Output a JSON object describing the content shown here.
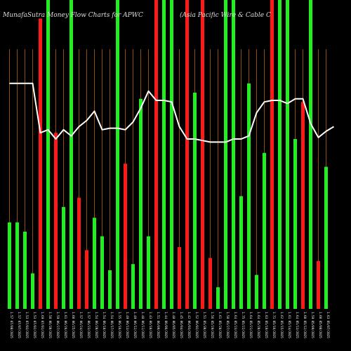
{
  "header": {
    "left_title": "MunafaSutra  Money Flow  Charts for APWC",
    "right_title": "(Asia  Pacific Wire  & Cable   C"
  },
  "colors": {
    "background": "#000000",
    "gridline": "#b8620a",
    "bar_up": "#22ee22",
    "bar_down": "#ff1a1a",
    "price_line": "#ffffff",
    "text": "#dddddd"
  },
  "chart_data": {
    "type": "bar",
    "title": "MunafaSutra  Money Flow  Charts for APWC",
    "subtitle": "(Asia  Pacific Wire  & Cable   C",
    "grid": "vertical",
    "ylim": [
      0,
      100
    ],
    "bars": [
      {
        "label": "1.57 07/08/2025",
        "value": 28,
        "dir": "up"
      },
      {
        "label": "1.57 07/07/2025",
        "value": 28,
        "dir": "up"
      },
      {
        "label": "1.53 07/03/2025",
        "value": 25,
        "dir": "up"
      },
      {
        "label": "1.53 07/02/2025",
        "value": 11.5,
        "dir": "up"
      },
      {
        "label": "1.69 07/01/2025",
        "value": 94,
        "dir": "down"
      },
      {
        "label": "1.58 06/30/2025",
        "value": 100,
        "dir": "up"
      },
      {
        "label": "1.59 06/27/2025",
        "value": 57,
        "dir": "down"
      },
      {
        "label": "1.61 06/26/2025",
        "value": 33,
        "dir": "up"
      },
      {
        "label": "1.60 06/25/2025",
        "value": 100,
        "dir": "up"
      },
      {
        "label": "1.57 06/24/2025",
        "value": 36,
        "dir": "down"
      },
      {
        "label": "1.57 06/23/2025",
        "value": 19,
        "dir": "down"
      },
      {
        "label": "1.54 06/20/2025",
        "value": 29.5,
        "dir": "up"
      },
      {
        "label": "1.54 06/18/2025",
        "value": 23.5,
        "dir": "up"
      },
      {
        "label": "1.54 06/17/2025",
        "value": 12.5,
        "dir": "up"
      },
      {
        "label": "1.55 06/16/2025",
        "value": 100,
        "dir": "up"
      },
      {
        "label": "1.49 06/13/2025",
        "value": 47,
        "dir": "down"
      },
      {
        "label": "1.49 06/12/2025",
        "value": 14.5,
        "dir": "up"
      },
      {
        "label": "1.48 06/11/2025",
        "value": 68,
        "dir": "up"
      },
      {
        "label": "1.43 06/10/2025",
        "value": 23.5,
        "dir": "up"
      },
      {
        "label": "1.51 06/09/2025",
        "value": 100,
        "dir": "down"
      },
      {
        "label": "1.44 06/06/2025",
        "value": 100,
        "dir": "up"
      },
      {
        "label": "1.48 06/05/2025",
        "value": 100,
        "dir": "up"
      },
      {
        "label": "1.45 06/04/2025",
        "value": 20,
        "dir": "down"
      },
      {
        "label": "1.42 06/03/2025",
        "value": 100,
        "dir": "down"
      },
      {
        "label": "1.52 06/02/2025",
        "value": 70,
        "dir": "up"
      },
      {
        "label": "1.51 05/30/2025",
        "value": 100,
        "dir": "down"
      },
      {
        "label": "1.56 05/29/2025",
        "value": 16.5,
        "dir": "down"
      },
      {
        "label": "1.61 05/28/2025",
        "value": 7,
        "dir": "up"
      },
      {
        "label": "1.58 05/27/2025",
        "value": 100,
        "dir": "up"
      },
      {
        "label": "1.64 05/23/2025",
        "value": 100,
        "dir": "up"
      },
      {
        "label": "1.75 05/22/2025",
        "value": 36.5,
        "dir": "up"
      },
      {
        "label": "1.64 05/21/2025",
        "value": 73,
        "dir": "up"
      },
      {
        "label": "1.64 05/20/2025",
        "value": 11,
        "dir": "up"
      },
      {
        "label": "1.63 05/19/2025",
        "value": 50.5,
        "dir": "up"
      },
      {
        "label": "1.71 05/16/2025",
        "value": 100,
        "dir": "down"
      },
      {
        "label": "1.62 05/15/2025",
        "value": 100,
        "dir": "up"
      },
      {
        "label": "1.61 05/14/2025",
        "value": 100,
        "dir": "up"
      },
      {
        "label": "1.64 05/13/2025",
        "value": 55,
        "dir": "up"
      },
      {
        "label": "1.60 05/12/2025",
        "value": 67,
        "dir": "down"
      },
      {
        "label": "1.59 05/09/2025",
        "value": 100,
        "dir": "up"
      },
      {
        "label": "1.60 05/08/2025",
        "value": 15.5,
        "dir": "down"
      },
      {
        "label": "1.63 05/07/2025",
        "value": 46,
        "dir": "up"
      }
    ],
    "price_line": [
      73,
      73,
      73,
      73,
      57,
      58,
      55,
      58,
      56,
      59,
      61,
      64,
      58,
      58.5,
      58.5,
      58,
      60.5,
      65,
      70.5,
      67.5,
      67.5,
      67,
      59,
      55,
      55,
      54.5,
      54,
      54,
      54,
      55,
      55,
      56,
      63.5,
      67,
      67.5,
      67.5,
      66.5,
      68,
      68,
      60,
      55.5,
      57.5,
      59
    ]
  }
}
